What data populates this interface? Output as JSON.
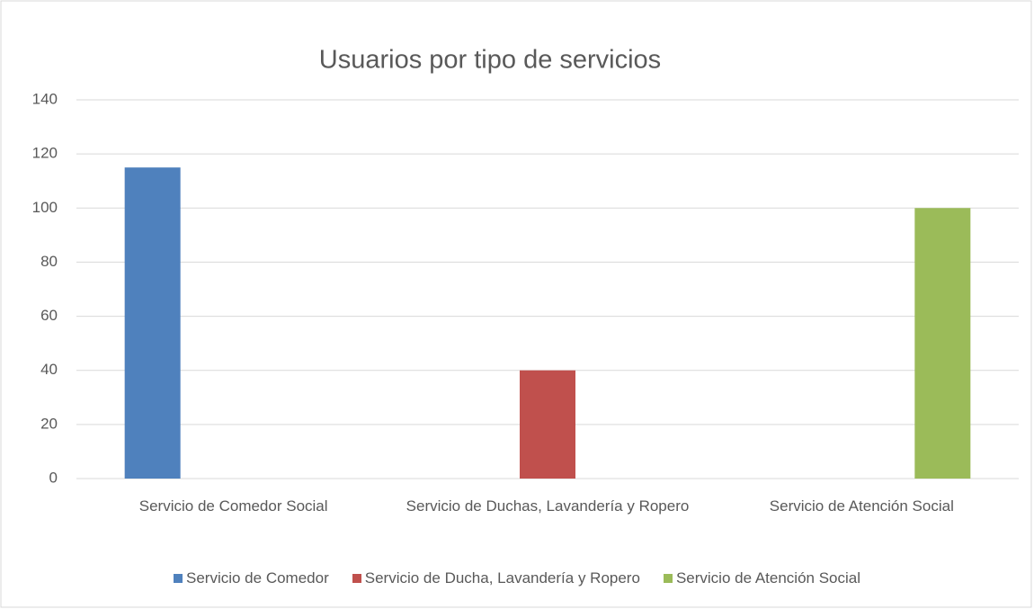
{
  "chart_data": {
    "type": "bar",
    "title": "Usuarios por tipo de servicios",
    "categories": [
      "Servicio de Comedor Social",
      "Servicio de Duchas, Lavandería y Ropero",
      "Servicio de Atención Social"
    ],
    "series": [
      {
        "name": "Servicio de Comedor",
        "color": "#4f81bd",
        "values": [
          115,
          null,
          null
        ]
      },
      {
        "name": "Servicio de Ducha, Lavandería y Ropero",
        "color": "#c0504d",
        "values": [
          null,
          40,
          null
        ]
      },
      {
        "name": "Servicio de Atención Social",
        "color": "#9bbb59",
        "values": [
          null,
          null,
          100
        ]
      }
    ],
    "ylim": [
      0,
      140
    ],
    "yticks": [
      0,
      20,
      40,
      60,
      80,
      100,
      120,
      140
    ],
    "grid": true,
    "legend": "bottom"
  }
}
